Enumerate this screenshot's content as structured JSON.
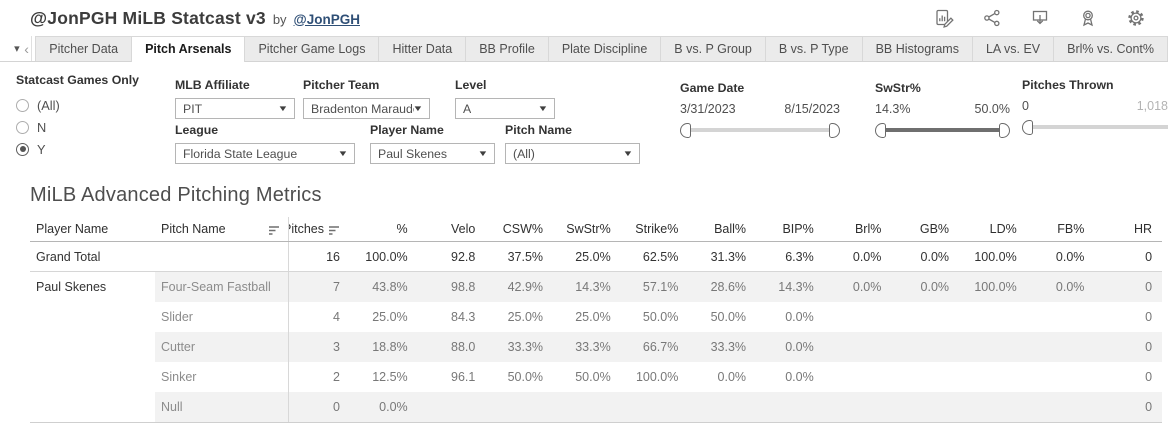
{
  "header": {
    "title": "@JonPGH MiLB Statcast v3",
    "by_text": "by",
    "author_link": "@JonPGH",
    "toolbar_icons": [
      "edit-viz-icon",
      "share-icon",
      "download-icon",
      "award-icon",
      "settings-icon"
    ]
  },
  "tabs": {
    "items": [
      {
        "label": "Pitcher Data",
        "active": false
      },
      {
        "label": "Pitch Arsenals",
        "active": true
      },
      {
        "label": "Pitcher Game Logs",
        "active": false
      },
      {
        "label": "Hitter Data",
        "active": false
      },
      {
        "label": "BB Profile",
        "active": false
      },
      {
        "label": "Plate Discipline",
        "active": false
      },
      {
        "label": "B vs. P Group",
        "active": false
      },
      {
        "label": "B vs. P Type",
        "active": false
      },
      {
        "label": "BB Histograms",
        "active": false
      },
      {
        "label": "LA vs. EV",
        "active": false
      },
      {
        "label": "Brl% vs. Cont%",
        "active": false
      }
    ]
  },
  "filters": {
    "statcast": {
      "label": "Statcast Games Only",
      "options": [
        {
          "label": "(All)",
          "selected": false
        },
        {
          "label": "N",
          "selected": false
        },
        {
          "label": "Y",
          "selected": true
        }
      ]
    },
    "dropdowns": [
      {
        "label": "MLB Affiliate",
        "value": "PIT"
      },
      {
        "label": "Pitcher Team",
        "value": "Bradenton Marauders"
      },
      {
        "label": "Level",
        "value": "A"
      },
      {
        "label": "League",
        "value": "Florida State League"
      },
      {
        "label": "Player Name",
        "value": "Paul Skenes"
      },
      {
        "label": "Pitch Name",
        "value": "(All)"
      }
    ],
    "sliders": [
      {
        "label": "Game Date",
        "min_value": "3/31/2023",
        "max_value": "8/15/2023"
      },
      {
        "label": "SwStr%",
        "min_value": "14.3%",
        "max_value": "50.0%"
      },
      {
        "label": "Pitches Thrown",
        "min_value": "0",
        "max_value": "1,018"
      }
    ]
  },
  "table": {
    "title": "MiLB Advanced Pitching Metrics",
    "columns": [
      "Player Name",
      "Pitch Name",
      "Pitches",
      "%",
      "Velo",
      "CSW%",
      "SwStr%",
      "Strike%",
      "Ball%",
      "BIP%",
      "Brl%",
      "GB%",
      "LD%",
      "FB%",
      "HR"
    ],
    "grand_total": {
      "player": "Grand Total",
      "pitch": "",
      "shaded": false,
      "values": [
        "16",
        "100.0%",
        "92.8",
        "37.5%",
        "25.0%",
        "62.5%",
        "31.3%",
        "6.3%",
        "0.0%",
        "0.0%",
        "100.0%",
        "0.0%",
        "0"
      ]
    },
    "rows": [
      {
        "player": "Paul Skenes",
        "pitch": "Four-Seam Fastball",
        "shaded": true,
        "values": [
          "7",
          "43.8%",
          "98.8",
          "42.9%",
          "14.3%",
          "57.1%",
          "28.6%",
          "14.3%",
          "0.0%",
          "0.0%",
          "100.0%",
          "0.0%",
          "0"
        ]
      },
      {
        "player": "",
        "pitch": "Slider",
        "shaded": false,
        "values": [
          "4",
          "25.0%",
          "84.3",
          "25.0%",
          "25.0%",
          "50.0%",
          "50.0%",
          "0.0%",
          "",
          "",
          "",
          "",
          "0"
        ]
      },
      {
        "player": "",
        "pitch": "Cutter",
        "shaded": true,
        "values": [
          "3",
          "18.8%",
          "88.0",
          "33.3%",
          "33.3%",
          "66.7%",
          "33.3%",
          "0.0%",
          "",
          "",
          "",
          "",
          "0"
        ]
      },
      {
        "player": "",
        "pitch": "Sinker",
        "shaded": false,
        "values": [
          "2",
          "12.5%",
          "96.1",
          "50.0%",
          "50.0%",
          "100.0%",
          "0.0%",
          "0.0%",
          "",
          "",
          "",
          "",
          "0"
        ]
      },
      {
        "player": "",
        "pitch": "Null",
        "shaded": true,
        "values": [
          "0",
          "0.0%",
          "",
          "",
          "",
          "",
          "",
          "",
          "",
          "",
          "",
          "",
          "0"
        ]
      }
    ]
  },
  "colors": {
    "link": "#2f4f76",
    "tab_inactive_bg": "#ebebeb",
    "row_band": "#f2f2f2",
    "slider_track_light": "#d4d4d4",
    "slider_track_dark": "#6f6f6f",
    "divider": "#d8d8d8"
  }
}
